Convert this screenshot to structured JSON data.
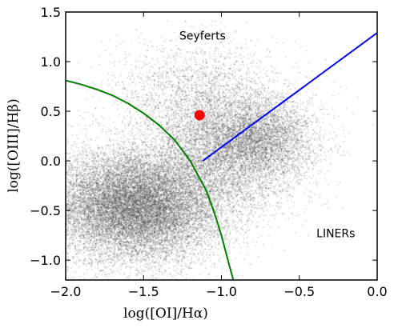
{
  "chart_data": {
    "type": "scatter",
    "xlabel": "log([OI]/Hα)",
    "ylabel": "log([OIII]/Hβ)",
    "xlim": [
      -2.0,
      0.0
    ],
    "ylim": [
      -1.2,
      1.5
    ],
    "x_ticks": [
      -2.0,
      -1.5,
      -1.0,
      -0.5,
      0.0
    ],
    "x_tick_labels": [
      "−2.0",
      "−1.5",
      "−1.0",
      "−0.5",
      "0.0"
    ],
    "y_ticks": [
      -1.0,
      -0.5,
      0.0,
      0.5,
      1.0,
      1.5
    ],
    "y_tick_labels": [
      "−1.0",
      "−0.5",
      "0.0",
      "0.5",
      "1.0",
      "1.5"
    ],
    "grid": false,
    "annotations": [
      {
        "text": "Seyferts",
        "x": -1.27,
        "y": 1.22
      },
      {
        "text": "LINERs",
        "x": -0.39,
        "y": -0.77
      }
    ],
    "density_clusters": [
      {
        "cx": -1.55,
        "cy": -0.45,
        "sx": 0.28,
        "sy": 0.28,
        "weight": 0.62
      },
      {
        "cx": -0.95,
        "cy": 0.1,
        "sx": 0.25,
        "sy": 0.3,
        "weight": 0.2
      },
      {
        "cx": -0.75,
        "cy": 0.25,
        "sx": 0.18,
        "sy": 0.2,
        "weight": 0.1
      },
      {
        "cx": -1.15,
        "cy": 0.65,
        "sx": 0.28,
        "sy": 0.28,
        "weight": 0.08
      }
    ],
    "series": [
      {
        "color": "#008000",
        "style": "curve",
        "points": [
          [
            -2.0,
            0.81
          ],
          [
            -1.9,
            0.77
          ],
          [
            -1.8,
            0.72
          ],
          [
            -1.7,
            0.66
          ],
          [
            -1.6,
            0.58
          ],
          [
            -1.5,
            0.48
          ],
          [
            -1.4,
            0.36
          ],
          [
            -1.3,
            0.21
          ],
          [
            -1.2,
            0.0
          ],
          [
            -1.1,
            -0.29
          ],
          [
            -1.05,
            -0.5
          ],
          [
            -1.0,
            -0.75
          ],
          [
            -0.95,
            -1.05
          ],
          [
            -0.92,
            -1.22
          ]
        ]
      },
      {
        "color": "#0000ff",
        "style": "line",
        "points": [
          [
            -1.12,
            0.0
          ],
          [
            0.0,
            1.29
          ]
        ]
      },
      {
        "color": "#ff0000",
        "style": "marker",
        "points": [
          [
            -1.14,
            0.46
          ]
        ]
      }
    ]
  }
}
